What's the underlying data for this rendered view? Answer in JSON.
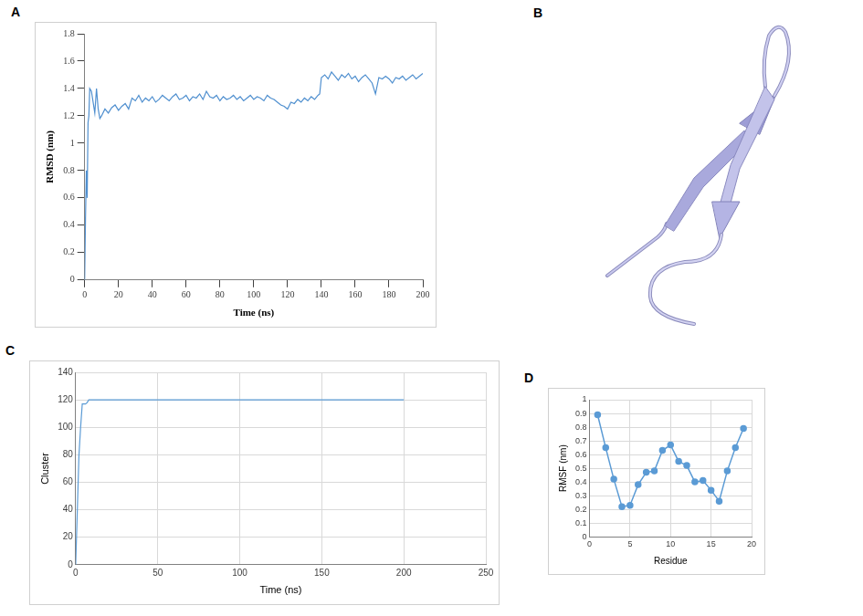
{
  "chart_data": [
    {
      "panel": "A",
      "type": "line",
      "x_label": "Time (ns)",
      "y_label": "RMSD (nm)",
      "x": [
        0,
        0.5,
        1,
        1.5,
        2,
        2.5,
        3,
        4,
        5,
        6,
        7,
        8,
        9,
        10,
        12,
        14,
        16,
        18,
        20,
        22,
        24,
        26,
        28,
        30,
        32,
        34,
        36,
        38,
        40,
        42,
        44,
        46,
        48,
        50,
        52,
        54,
        56,
        58,
        60,
        62,
        64,
        66,
        68,
        70,
        72,
        74,
        76,
        78,
        80,
        82,
        84,
        86,
        88,
        90,
        92,
        94,
        96,
        98,
        100,
        102,
        104,
        106,
        108,
        110,
        112,
        114,
        116,
        118,
        120,
        122,
        124,
        126,
        128,
        130,
        132,
        134,
        136,
        138,
        139,
        140,
        142,
        144,
        146,
        148,
        150,
        152,
        154,
        156,
        158,
        160,
        162,
        164,
        166,
        168,
        170,
        172,
        174,
        176,
        178,
        180,
        182,
        184,
        186,
        188,
        190,
        192,
        194,
        196,
        198,
        200
      ],
      "values": [
        0.0,
        0.45,
        0.8,
        0.6,
        1.15,
        1.2,
        1.4,
        1.38,
        1.3,
        1.22,
        1.4,
        1.25,
        1.18,
        1.2,
        1.25,
        1.22,
        1.26,
        1.28,
        1.24,
        1.27,
        1.29,
        1.25,
        1.33,
        1.31,
        1.35,
        1.3,
        1.33,
        1.31,
        1.34,
        1.3,
        1.32,
        1.35,
        1.33,
        1.31,
        1.34,
        1.36,
        1.32,
        1.33,
        1.35,
        1.31,
        1.34,
        1.33,
        1.36,
        1.32,
        1.38,
        1.34,
        1.33,
        1.35,
        1.31,
        1.34,
        1.32,
        1.33,
        1.35,
        1.32,
        1.34,
        1.31,
        1.33,
        1.35,
        1.32,
        1.34,
        1.33,
        1.31,
        1.35,
        1.33,
        1.32,
        1.3,
        1.28,
        1.27,
        1.25,
        1.3,
        1.29,
        1.32,
        1.3,
        1.33,
        1.31,
        1.34,
        1.32,
        1.35,
        1.36,
        1.48,
        1.5,
        1.47,
        1.52,
        1.49,
        1.46,
        1.5,
        1.48,
        1.51,
        1.47,
        1.49,
        1.45,
        1.48,
        1.5,
        1.47,
        1.44,
        1.36,
        1.48,
        1.47,
        1.49,
        1.47,
        1.44,
        1.48,
        1.47,
        1.49,
        1.46,
        1.48,
        1.5,
        1.47,
        1.49,
        1.51
      ],
      "color": "#4f8fcf",
      "marker": "none",
      "line_style": "solid",
      "grid": false,
      "xlim": [
        0,
        200
      ],
      "xticks": [
        0,
        20,
        40,
        60,
        80,
        100,
        120,
        140,
        160,
        180,
        200
      ],
      "ylim": [
        0,
        1.8
      ],
      "yticks": [
        0,
        0.2,
        0.4,
        0.6,
        0.8,
        1,
        1.2,
        1.4,
        1.6,
        1.8
      ]
    },
    {
      "panel": "C",
      "type": "line",
      "x_label": "Time (ns)",
      "y_label": "Cluster",
      "x": [
        0,
        1,
        2,
        3,
        4,
        5,
        6,
        7,
        8,
        200
      ],
      "values": [
        0,
        40,
        80,
        100,
        117,
        117,
        117,
        118,
        120,
        120
      ],
      "color": "#5b9bd5",
      "marker": "none",
      "line_style": "solid",
      "grid": true,
      "xlim": [
        0,
        250
      ],
      "xticks": [
        0,
        50,
        100,
        150,
        200,
        250
      ],
      "ylim": [
        0,
        140
      ],
      "yticks": [
        0,
        20,
        40,
        60,
        80,
        100,
        120,
        140
      ]
    },
    {
      "panel": "D",
      "type": "line",
      "x_label": "Residue",
      "y_label": "RMSF (nm)",
      "x": [
        1,
        2,
        3,
        4,
        5,
        6,
        7,
        8,
        9,
        10,
        11,
        12,
        13,
        14,
        15,
        16,
        17,
        18,
        19
      ],
      "values": [
        0.89,
        0.65,
        0.42,
        0.22,
        0.23,
        0.38,
        0.47,
        0.48,
        0.63,
        0.67,
        0.55,
        0.52,
        0.4,
        0.41,
        0.34,
        0.26,
        0.48,
        0.65,
        0.79
      ],
      "color": "#5b9bd5",
      "marker": "circle",
      "line_style": "solid",
      "grid": true,
      "xlim": [
        0,
        20
      ],
      "xticks": [
        0,
        5,
        10,
        15,
        20
      ],
      "ylim": [
        0,
        1
      ],
      "yticks": [
        0,
        0.1,
        0.2,
        0.3,
        0.4,
        0.5,
        0.6,
        0.7,
        0.8,
        0.9,
        1
      ]
    }
  ],
  "diagram": {
    "panel": "B"
  }
}
